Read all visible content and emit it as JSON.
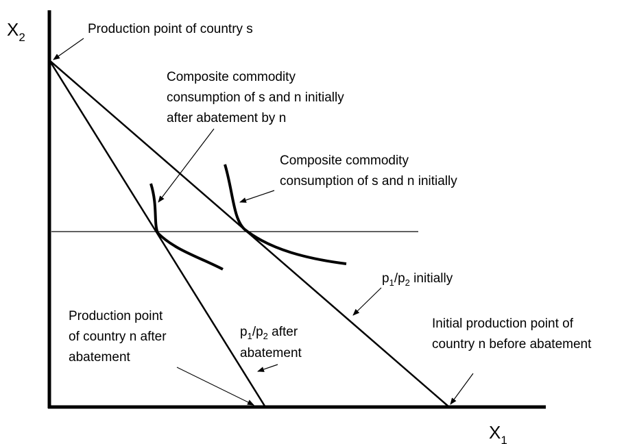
{
  "axes": {
    "y_label": [
      "X",
      "2"
    ],
    "x_label": [
      "X",
      "1"
    ]
  },
  "annotations": {
    "production_s": [
      "Production point of country s"
    ],
    "composite_after": [
      "Composite commodity",
      "consumption of s and n initially",
      "after abatement by n"
    ],
    "composite_initial": [
      "Composite commodity",
      "consumption of s and n initially"
    ],
    "production_n_after": [
      "Production point",
      "of country n after",
      "abatement"
    ],
    "production_n_initial": [
      "Initial production point of",
      "country n before abatement"
    ],
    "after_abatement_second_line": "abatement"
  },
  "price_initial": [
    "p",
    "1",
    "/p",
    "2",
    " initially"
  ],
  "price_after": [
    "p",
    "1",
    "/p",
    "2",
    " after"
  ]
}
